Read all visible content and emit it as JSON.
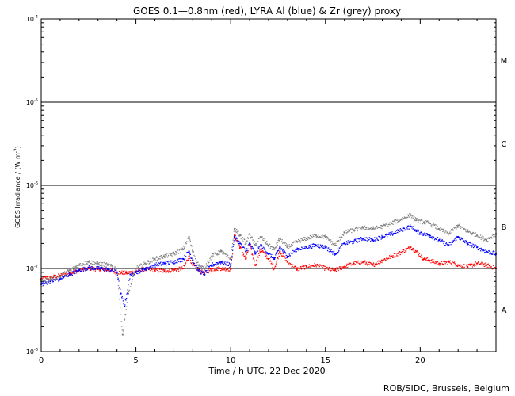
{
  "chart_data": {
    "type": "scatter",
    "title": "GOES 0.1—0.8nm (red), LYRA Al (blue) & Zr (grey) proxy",
    "xlabel": "Time / h UTC, 22 Dec 2020",
    "ylabel": "GOES Irradiance / (W m",
    "ylabel_exp": "-2",
    "ylabel_close": ")",
    "xlim": [
      0,
      24
    ],
    "ylim": [
      1e-08,
      0.0001
    ],
    "yscale": "log",
    "x_ticks": [
      {
        "value": 0,
        "label": "0"
      },
      {
        "value": 5,
        "label": "5"
      },
      {
        "value": 10,
        "label": "10"
      },
      {
        "value": 15,
        "label": "15"
      },
      {
        "value": 20,
        "label": "20"
      }
    ],
    "y_ticks": [
      {
        "value": 1e-08,
        "base": "10",
        "exp": "-8"
      },
      {
        "value": 1e-07,
        "base": "10",
        "exp": "-7"
      },
      {
        "value": 1e-06,
        "base": "10",
        "exp": "-6"
      },
      {
        "value": 1e-05,
        "base": "10",
        "exp": "-5"
      },
      {
        "value": 0.0001,
        "base": "10",
        "exp": "-4"
      }
    ],
    "threshold_lines": [
      1e-07,
      1e-06,
      1e-05
    ],
    "flare_classes": [
      {
        "label": "A",
        "value": 3.2e-08
      },
      {
        "label": "B",
        "value": 3.2e-07
      },
      {
        "label": "C",
        "value": 3.2e-06
      },
      {
        "label": "M",
        "value": 3.2e-05
      }
    ],
    "series": [
      {
        "color": "#ff0000",
        "x": [
          0,
          0.5,
          1,
          1.5,
          2,
          2.5,
          3,
          3.5,
          4,
          4.5,
          5,
          5.5,
          6,
          6.5,
          7,
          7.5,
          7.8,
          8,
          8.3,
          8.6,
          9,
          9.5,
          10,
          10.2,
          10.5,
          10.8,
          11,
          11.3,
          11.6,
          12,
          12.3,
          12.6,
          13,
          13.5,
          14,
          14.5,
          15,
          15.5,
          16,
          16.5,
          17,
          17.5,
          18,
          18.5,
          19,
          19.5,
          19.8,
          20.2,
          20.5,
          21,
          21.5,
          22,
          22.5,
          23,
          23.5,
          24
        ],
        "y": [
          7.5e-08,
          7.8e-08,
          8.2e-08,
          8.8e-08,
          9.5e-08,
          1e-07,
          9.8e-08,
          9.6e-08,
          9e-08,
          8.8e-08,
          9.2e-08,
          9.8e-08,
          9.5e-08,
          9.3e-08,
          9.6e-08,
          1e-07,
          1.4e-07,
          1.1e-07,
          9.5e-08,
          8.8e-08,
          9.8e-08,
          1e-07,
          9.8e-08,
          2.5e-07,
          1.8e-07,
          1.3e-07,
          1.9e-07,
          1.1e-07,
          1.7e-07,
          1.3e-07,
          1e-07,
          1.6e-07,
          1.2e-07,
          9.8e-08,
          1.05e-07,
          1.1e-07,
          1e-07,
          9.5e-08,
          1.05e-07,
          1.15e-07,
          1.2e-07,
          1.1e-07,
          1.25e-07,
          1.4e-07,
          1.55e-07,
          1.8e-07,
          1.6e-07,
          1.3e-07,
          1.25e-07,
          1.15e-07,
          1.2e-07,
          1.1e-07,
          1.05e-07,
          1.15e-07,
          1.1e-07,
          1e-07
        ]
      },
      {
        "color": "#0000ff",
        "x": [
          0,
          0.5,
          1,
          1.5,
          2,
          2.5,
          3,
          3.5,
          4,
          4.2,
          4.4,
          4.7,
          5,
          5.5,
          6,
          6.5,
          7,
          7.5,
          7.8,
          8,
          8.3,
          8.6,
          9,
          9.5,
          10,
          10.2,
          10.5,
          10.8,
          11,
          11.3,
          11.6,
          12,
          12.3,
          12.6,
          13,
          13.5,
          14,
          14.5,
          15,
          15.5,
          16,
          16.5,
          17,
          17.5,
          18,
          18.5,
          19,
          19.5,
          19.8,
          20.2,
          20.5,
          21,
          21.5,
          22,
          22.5,
          23,
          23.5,
          24
        ],
        "y": [
          6.5e-08,
          7e-08,
          7.5e-08,
          8.5e-08,
          9.5e-08,
          1.02e-07,
          1e-07,
          9.8e-08,
          9e-08,
          5e-08,
          3.5e-08,
          8.5e-08,
          9e-08,
          9.8e-08,
          1.1e-07,
          1.15e-07,
          1.2e-07,
          1.3e-07,
          1.6e-07,
          1.25e-07,
          9.5e-08,
          8.5e-08,
          1.1e-07,
          1.2e-07,
          1.1e-07,
          2.4e-07,
          2e-07,
          1.6e-07,
          2e-07,
          1.5e-07,
          1.9e-07,
          1.5e-07,
          1.3e-07,
          1.8e-07,
          1.4e-07,
          1.7e-07,
          1.8e-07,
          1.9e-07,
          1.8e-07,
          1.5e-07,
          2e-07,
          2.1e-07,
          2.3e-07,
          2.2e-07,
          2.4e-07,
          2.6e-07,
          2.9e-07,
          3.2e-07,
          2.8e-07,
          2.6e-07,
          2.5e-07,
          2.2e-07,
          1.9e-07,
          2.4e-07,
          2e-07,
          1.8e-07,
          1.6e-07,
          1.5e-07
        ]
      },
      {
        "color": "#808080",
        "x": [
          0,
          0.5,
          1,
          1.5,
          2,
          2.5,
          3,
          3.5,
          4,
          4.3,
          4.6,
          5,
          5.5,
          6,
          6.5,
          7,
          7.5,
          7.8,
          8,
          8.3,
          8.6,
          9,
          9.5,
          10,
          10.2,
          10.5,
          10.8,
          11,
          11.3,
          11.6,
          12,
          12.3,
          12.6,
          13,
          13.5,
          14,
          14.5,
          15,
          15.5,
          16,
          16.5,
          17,
          17.5,
          18,
          18.5,
          19,
          19.5,
          19.8,
          20.2,
          20.5,
          21,
          21.5,
          22,
          22.5,
          23,
          23.5,
          24
        ],
        "y": [
          7e-08,
          7.5e-08,
          8e-08,
          9.5e-08,
          1.1e-07,
          1.2e-07,
          1.15e-07,
          1.1e-07,
          1e-07,
          1.6e-08,
          5e-08,
          1e-07,
          1.15e-07,
          1.3e-07,
          1.4e-07,
          1.5e-07,
          1.7e-07,
          2.4e-07,
          1.6e-07,
          1.1e-07,
          1e-07,
          1.4e-07,
          1.6e-07,
          1.3e-07,
          3e-07,
          2.5e-07,
          2e-07,
          2.6e-07,
          1.9e-07,
          2.4e-07,
          1.9e-07,
          1.7e-07,
          2.3e-07,
          1.8e-07,
          2.1e-07,
          2.3e-07,
          2.5e-07,
          2.4e-07,
          1.9e-07,
          2.7e-07,
          2.9e-07,
          3.1e-07,
          3e-07,
          3.2e-07,
          3.5e-07,
          3.9e-07,
          4.4e-07,
          3.8e-07,
          3.6e-07,
          3.5e-07,
          3e-07,
          2.6e-07,
          3.3e-07,
          2.8e-07,
          2.5e-07,
          2.2e-07,
          2.6e-07
        ]
      }
    ]
  },
  "footer": {
    "credit": "ROB/SIDC, Brussels, Belgium"
  }
}
